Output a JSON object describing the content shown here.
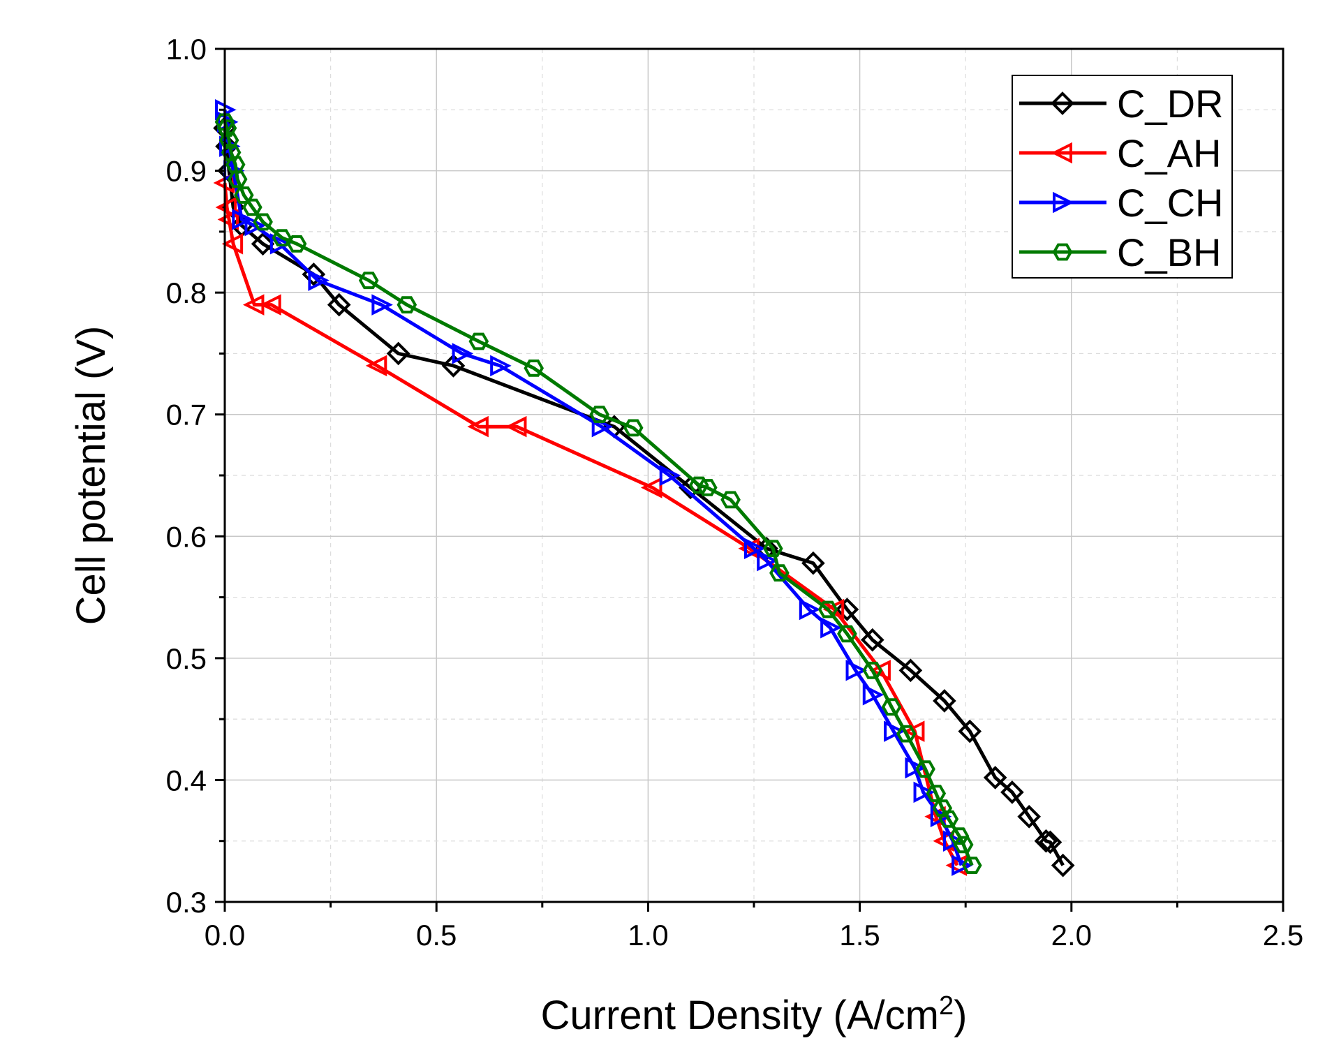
{
  "chart_data": {
    "type": "line",
    "title": "",
    "xlabel": "Current Density (A/cm",
    "xlabel_sup": "2",
    "xlabel_end": ")",
    "ylabel": "Cell potential (V)",
    "xlim": [
      0.0,
      2.5
    ],
    "ylim": [
      0.3,
      1.0
    ],
    "x_ticks": [
      "0.0",
      "0.5",
      "1.0",
      "1.5",
      "2.0",
      "2.5"
    ],
    "y_ticks": [
      "0.3",
      "0.4",
      "0.5",
      "0.6",
      "0.7",
      "0.8",
      "0.9",
      "1.0"
    ],
    "grid": true,
    "legend_position": "top-right",
    "series": [
      {
        "name": "C_DR",
        "color": "#000000",
        "marker": "diamond",
        "x": [
          0.0,
          0.005,
          0.01,
          0.02,
          0.04,
          0.09,
          0.21,
          0.27,
          0.41,
          0.54,
          0.92,
          1.1,
          1.28,
          1.39,
          1.47,
          1.53,
          1.62,
          1.7,
          1.76,
          1.82,
          1.86,
          1.9,
          1.94,
          1.95,
          1.98
        ],
        "y": [
          0.935,
          0.92,
          0.9,
          0.87,
          0.855,
          0.84,
          0.815,
          0.79,
          0.75,
          0.74,
          0.69,
          0.64,
          0.59,
          0.578,
          0.54,
          0.515,
          0.49,
          0.465,
          0.44,
          0.402,
          0.39,
          0.37,
          0.35,
          0.349,
          0.33
        ]
      },
      {
        "name": "C_AH",
        "color": "#ff0000",
        "marker": "triangle-left",
        "x": [
          0.0,
          0.005,
          0.01,
          0.02,
          0.07,
          0.11,
          0.36,
          0.6,
          0.69,
          1.01,
          1.24,
          1.44,
          1.55,
          1.63,
          1.68,
          1.7,
          1.73
        ],
        "y": [
          0.89,
          0.87,
          0.86,
          0.84,
          0.79,
          0.79,
          0.74,
          0.69,
          0.69,
          0.64,
          0.59,
          0.54,
          0.49,
          0.44,
          0.37,
          0.35,
          0.33
        ]
      },
      {
        "name": "C_CH",
        "color": "#0000ff",
        "marker": "triangle-right",
        "x": [
          0.0,
          0.005,
          0.01,
          0.02,
          0.04,
          0.07,
          0.13,
          0.22,
          0.37,
          0.56,
          0.65,
          0.89,
          1.05,
          1.25,
          1.28,
          1.38,
          1.43,
          1.49,
          1.53,
          1.58,
          1.63,
          1.65,
          1.69,
          1.72,
          1.74
        ],
        "y": [
          0.95,
          0.94,
          0.92,
          0.9,
          0.86,
          0.855,
          0.84,
          0.81,
          0.79,
          0.75,
          0.74,
          0.69,
          0.65,
          0.59,
          0.58,
          0.54,
          0.525,
          0.49,
          0.47,
          0.44,
          0.41,
          0.39,
          0.37,
          0.35,
          0.33
        ]
      },
      {
        "name": "C_BH",
        "color": "#007a00",
        "marker": "hexagon",
        "x": [
          0.0,
          0.005,
          0.01,
          0.015,
          0.025,
          0.03,
          0.045,
          0.065,
          0.09,
          0.135,
          0.17,
          0.34,
          0.43,
          0.6,
          0.73,
          0.885,
          0.965,
          1.12,
          1.14,
          1.195,
          1.295,
          1.31,
          1.425,
          1.47,
          1.53,
          1.575,
          1.61,
          1.655,
          1.68,
          1.695,
          1.71,
          1.735,
          1.745,
          1.765
        ],
        "y": [
          0.94,
          0.935,
          0.925,
          0.915,
          0.905,
          0.893,
          0.88,
          0.87,
          0.858,
          0.845,
          0.84,
          0.81,
          0.79,
          0.76,
          0.738,
          0.7,
          0.689,
          0.642,
          0.64,
          0.63,
          0.59,
          0.57,
          0.54,
          0.52,
          0.49,
          0.46,
          0.438,
          0.409,
          0.389,
          0.377,
          0.368,
          0.354,
          0.347,
          0.33
        ]
      }
    ]
  }
}
